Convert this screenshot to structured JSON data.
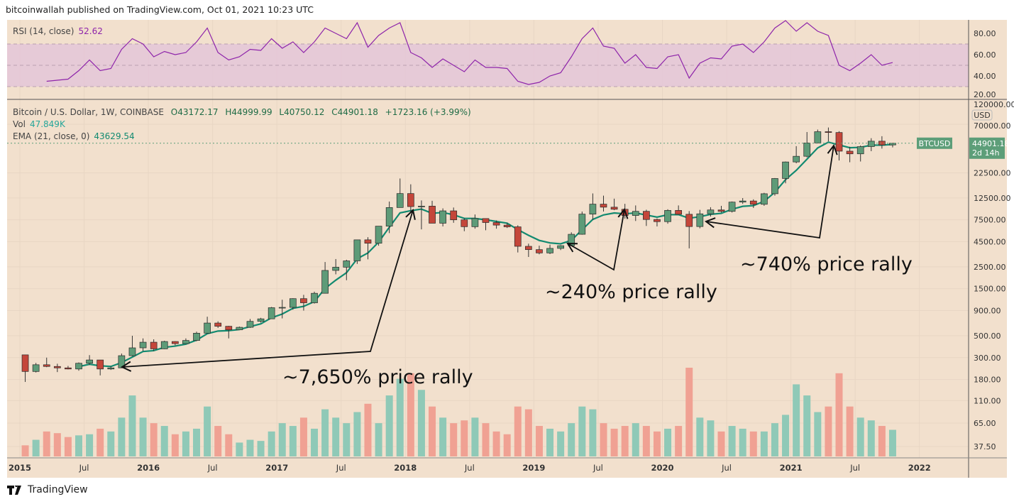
{
  "header": {
    "published": "bitcoinwallah published on TradingView.com, Oct 01, 2021 10:23 UTC"
  },
  "rsi_legend": {
    "label": "RSI (14, close)",
    "value": "52.62"
  },
  "price_legend": {
    "symbol": "Bitcoin / U.S. Dollar, 1W, COINBASE",
    "open": "O43172.17",
    "high": "H44999.99",
    "low": "L40750.12",
    "close": "C44901.18",
    "change": "+1723.16 (+3.99%)"
  },
  "vol_legend": {
    "label": "Vol",
    "value": "47.849K"
  },
  "ema_legend": {
    "label": "EMA (21, close, 0)",
    "value": "43629.54"
  },
  "price_tag": {
    "symbol": "BTCUSD",
    "price": "44901.18",
    "countdown": "2d 14h"
  },
  "currency": "USD",
  "footer": {
    "brand": "TradingView"
  },
  "colors": {
    "background": "#f2e0cd",
    "up": "#5e9b78",
    "down": "#c4463a",
    "vol_up": "#8fc9b7",
    "vol_down": "#f0a193",
    "ema": "#128a70",
    "rsi": "#8e24aa",
    "rsi_band": "#e4c5d8",
    "tag": "#5d9e79"
  },
  "chart_data": {
    "type": "candlestick",
    "scale": "log",
    "grid": true,
    "x_ticks": [
      "2015",
      "Jul",
      "2016",
      "Jul",
      "2017",
      "Jul",
      "2018",
      "Jul",
      "2019",
      "Jul",
      "2020",
      "Jul",
      "2021",
      "Jul",
      "2022"
    ],
    "y_ticks": [
      "120000.00",
      "70000.00",
      "22500.00",
      "12500.00",
      "7500.00",
      "4500.00",
      "2500.00",
      "1500.00",
      "900.00",
      "500.00",
      "300.00",
      "180.00",
      "110.00",
      "65.00",
      "37.50"
    ],
    "rsi_ticks": [
      "80.00",
      "60.00",
      "40.00",
      "20.00"
    ],
    "rsi_band": [
      30,
      70
    ],
    "start": "2015-01",
    "ohlc": [
      [
        320,
        320,
        170,
        217
      ],
      [
        217,
        265,
        212,
        254
      ],
      [
        254,
        300,
        240,
        244
      ],
      [
        244,
        260,
        214,
        236
      ],
      [
        236,
        247,
        228,
        230
      ],
      [
        230,
        268,
        221,
        263
      ],
      [
        263,
        318,
        253,
        284
      ],
      [
        284,
        284,
        198,
        230
      ],
      [
        230,
        244,
        225,
        236
      ],
      [
        236,
        330,
        236,
        314
      ],
      [
        314,
        500,
        310,
        377
      ],
      [
        377,
        470,
        350,
        430
      ],
      [
        430,
        460,
        350,
        368
      ],
      [
        368,
        445,
        366,
        437
      ],
      [
        437,
        440,
        400,
        416
      ],
      [
        416,
        470,
        415,
        448
      ],
      [
        448,
        550,
        440,
        531
      ],
      [
        531,
        780,
        530,
        673
      ],
      [
        673,
        700,
        600,
        624
      ],
      [
        624,
        630,
        470,
        574
      ],
      [
        574,
        620,
        570,
        609
      ],
      [
        609,
        740,
        600,
        700
      ],
      [
        700,
        760,
        680,
        742
      ],
      [
        742,
        980,
        740,
        963
      ],
      [
        963,
        1160,
        750,
        970
      ],
      [
        970,
        1200,
        920,
        1190
      ],
      [
        1190,
        1300,
        900,
        1080
      ],
      [
        1080,
        1400,
        1060,
        1348
      ],
      [
        1348,
        2800,
        1340,
        2300
      ],
      [
        2300,
        3000,
        2100,
        2480
      ],
      [
        2480,
        2950,
        1830,
        2875
      ],
      [
        2875,
        4700,
        2680,
        4700
      ],
      [
        4700,
        5000,
        2980,
        4340
      ],
      [
        4340,
        6470,
        4100,
        6470
      ],
      [
        6470,
        11500,
        5500,
        10000
      ],
      [
        10000,
        19700,
        10000,
        13860
      ],
      [
        13860,
        17200,
        9000,
        10220
      ],
      [
        10220,
        11800,
        6000,
        10330
      ],
      [
        10330,
        11700,
        7300,
        6930
      ],
      [
        6930,
        9800,
        6430,
        9250
      ],
      [
        9250,
        10000,
        7000,
        7500
      ],
      [
        7500,
        7800,
        5750,
        6390
      ],
      [
        6390,
        8500,
        6100,
        7730
      ],
      [
        7730,
        7760,
        5880,
        7040
      ],
      [
        7040,
        7400,
        6100,
        6630
      ],
      [
        6630,
        7000,
        6200,
        6370
      ],
      [
        6370,
        6600,
        3500,
        4040
      ],
      [
        4040,
        4300,
        3150,
        3740
      ],
      [
        3740,
        4100,
        3350,
        3460
      ],
      [
        3460,
        4200,
        3370,
        3850
      ],
      [
        3850,
        4150,
        3700,
        4100
      ],
      [
        4100,
        5600,
        4100,
        5350
      ],
      [
        5350,
        9100,
        5300,
        8570
      ],
      [
        8570,
        13900,
        7500,
        10820
      ],
      [
        10820,
        13200,
        9100,
        10080
      ],
      [
        10080,
        12300,
        9400,
        9600
      ],
      [
        9600,
        10900,
        7700,
        8300
      ],
      [
        8300,
        10500,
        7300,
        9150
      ],
      [
        9150,
        9500,
        6500,
        7560
      ],
      [
        7560,
        7750,
        6430,
        7190
      ],
      [
        7190,
        9600,
        6850,
        9350
      ],
      [
        9350,
        10500,
        8450,
        8540
      ],
      [
        8540,
        9200,
        3850,
        6410
      ],
      [
        6410,
        9470,
        6150,
        8630
      ],
      [
        8630,
        10070,
        8100,
        9450
      ],
      [
        9450,
        10400,
        8900,
        9140
      ],
      [
        9140,
        11500,
        8900,
        11350
      ],
      [
        11350,
        12470,
        10900,
        11650
      ],
      [
        11650,
        12100,
        9900,
        10780
      ],
      [
        10780,
        14100,
        10400,
        13800
      ],
      [
        13800,
        19900,
        13200,
        19700
      ],
      [
        19700,
        29300,
        17600,
        28990
      ],
      [
        28990,
        41950,
        28100,
        33100
      ],
      [
        33100,
        58350,
        32300,
        45200
      ],
      [
        45200,
        61780,
        45000,
        58800
      ],
      [
        58800,
        64850,
        47000,
        57700
      ],
      [
        57700,
        59500,
        30000,
        37300
      ],
      [
        37300,
        41300,
        28800,
        35040
      ],
      [
        35040,
        42600,
        29300,
        41500
      ],
      [
        41500,
        50500,
        37300,
        47100
      ],
      [
        47100,
        52900,
        39600,
        43172
      ],
      [
        43172,
        44999.99,
        40750.12,
        44901.18
      ]
    ],
    "volume_k": [
      20,
      30,
      45,
      42,
      35,
      38,
      40,
      50,
      45,
      70,
      110,
      70,
      60,
      55,
      40,
      45,
      50,
      90,
      55,
      40,
      25,
      30,
      28,
      45,
      60,
      55,
      70,
      50,
      85,
      70,
      60,
      80,
      95,
      60,
      110,
      140,
      150,
      120,
      90,
      70,
      60,
      65,
      70,
      60,
      45,
      40,
      90,
      85,
      55,
      50,
      45,
      60,
      90,
      85,
      60,
      50,
      55,
      60,
      55,
      45,
      50,
      55,
      160,
      70,
      65,
      45,
      55,
      50,
      45,
      45,
      60,
      75,
      130,
      110,
      80,
      90,
      150,
      90,
      70,
      65,
      55,
      48
    ],
    "rsi": [
      null,
      null,
      35,
      36,
      37,
      45,
      55,
      45,
      47,
      65,
      75,
      70,
      58,
      63,
      60,
      62,
      72,
      85,
      62,
      55,
      58,
      65,
      64,
      75,
      66,
      72,
      62,
      72,
      85,
      80,
      75,
      90,
      67,
      78,
      85,
      90,
      62,
      57,
      48,
      56,
      50,
      44,
      55,
      48,
      48,
      47,
      35,
      32,
      34,
      40,
      43,
      58,
      75,
      85,
      68,
      66,
      52,
      60,
      48,
      47,
      58,
      60,
      38,
      52,
      57,
      56,
      68,
      70,
      62,
      72,
      85,
      92,
      82,
      90,
      82,
      78,
      50,
      45,
      52,
      60,
      50,
      52.62
    ],
    "ema_period_weeks": 21,
    "annotations": [
      "~7,650% price rally",
      "~240% price rally",
      "~740% price rally"
    ]
  }
}
